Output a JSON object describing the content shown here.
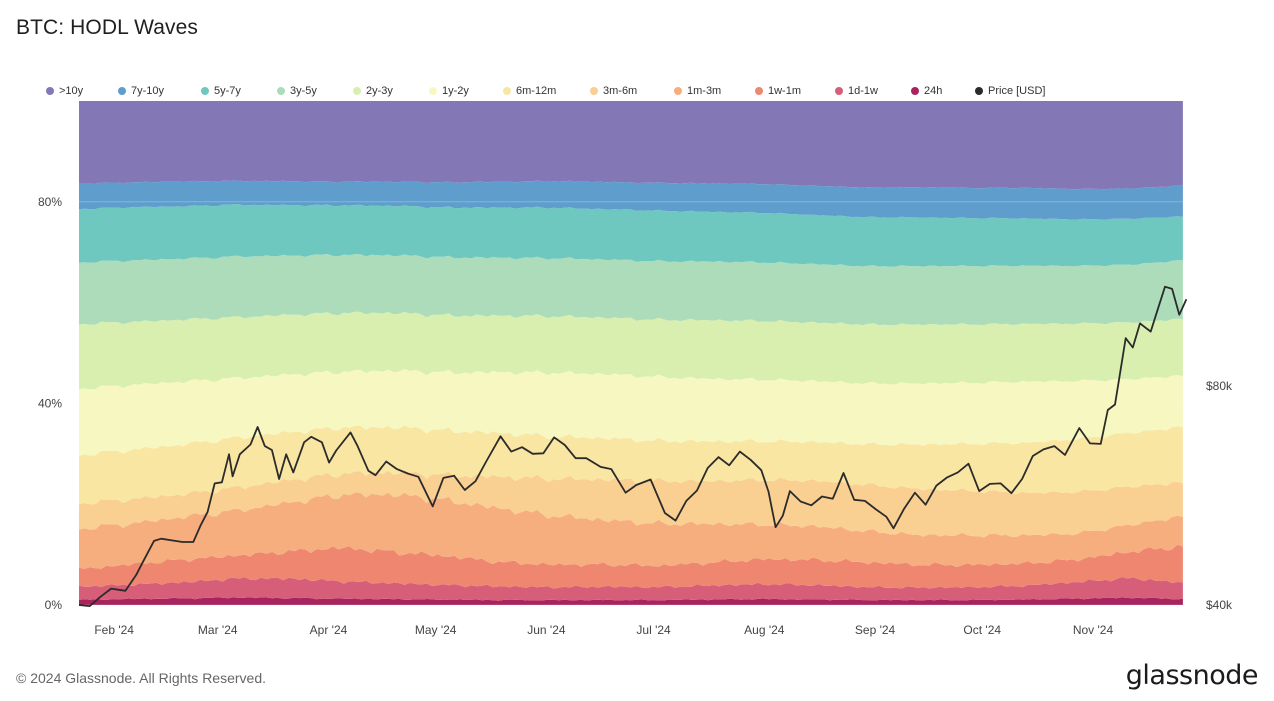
{
  "header": {
    "title": "BTC: HODL Waves"
  },
  "footer": {
    "copyright": "© 2024 Glassnode. All Rights Reserved.",
    "brand": "glassnode"
  },
  "colors": {
    ">10y": "#8378b5",
    "7y-10y": "#5f9dcc",
    "5y-7y": "#6fc8c0",
    "3y-5y": "#addcbb",
    "2y-3y": "#d8efb0",
    "1y-2y": "#f7f7c2",
    "6m-12m": "#fae6a3",
    "3m-6m": "#f9cf92",
    "1m-3m": "#f6ae7e",
    "1w-1m": "#ee8670",
    "1d-1w": "#d65e78",
    "24h": "#a8245e",
    "price": "#2b2b2b"
  },
  "chart_data": {
    "type": "area",
    "title": "BTC: HODL Waves",
    "stacking": "percent",
    "x": [
      "2024-01-23",
      "2024-02-01",
      "2024-02-15",
      "2024-03-01",
      "2024-03-15",
      "2024-04-01",
      "2024-04-15",
      "2024-05-01",
      "2024-05-15",
      "2024-06-01",
      "2024-06-15",
      "2024-07-01",
      "2024-07-15",
      "2024-08-01",
      "2024-08-15",
      "2024-09-01",
      "2024-09-15",
      "2024-10-01",
      "2024-10-15",
      "2024-11-01",
      "2024-11-15",
      "2024-11-27"
    ],
    "x_tick_labels": [
      "Feb '24",
      "Mar '24",
      "Apr '24",
      "May '24",
      "Jun '24",
      "Jul '24",
      "Aug '24",
      "Sep '24",
      "Oct '24",
      "Nov '24"
    ],
    "y_left": {
      "ticks": [
        0,
        40,
        80
      ],
      "tick_labels": [
        "0%",
        "40%",
        "80%"
      ],
      "range": [
        0,
        100
      ]
    },
    "y_right": {
      "ticks": [
        40000,
        80000
      ],
      "tick_labels": [
        "$40k",
        "$80k"
      ],
      "range": [
        40000,
        132000
      ]
    },
    "legend_position": "top",
    "series": [
      {
        "name": "24h",
        "values": [
          1.0,
          1.2,
          1.3,
          1.5,
          1.4,
          1.3,
          1.2,
          1.1,
          1.0,
          1.0,
          1.0,
          1.0,
          1.1,
          1.2,
          1.1,
          1.0,
          1.0,
          1.0,
          1.1,
          1.3,
          1.5,
          1.2
        ]
      },
      {
        "name": "1d-1w",
        "values": [
          2.6,
          2.8,
          3.2,
          3.8,
          4.0,
          3.6,
          3.3,
          3.0,
          2.8,
          2.6,
          2.7,
          2.6,
          2.8,
          3.0,
          2.9,
          2.6,
          2.5,
          2.6,
          2.8,
          3.4,
          4.0,
          3.2
        ]
      },
      {
        "name": "1w-1m",
        "values": [
          3.4,
          4.0,
          4.5,
          4.6,
          5.5,
          7.0,
          6.5,
          6.0,
          5.0,
          4.6,
          4.5,
          4.3,
          4.6,
          5.0,
          5.1,
          5.0,
          4.6,
          4.5,
          4.5,
          4.6,
          5.4,
          7.4
        ]
      },
      {
        "name": "1m-3m",
        "values": [
          8.0,
          8.0,
          8.5,
          9.0,
          10.0,
          11.0,
          12.0,
          11.5,
          11.0,
          10.0,
          9.0,
          8.5,
          7.8,
          7.0,
          6.8,
          6.3,
          6.0,
          6.0,
          5.7,
          5.3,
          5.5,
          6.0
        ]
      },
      {
        "name": "3m-6m",
        "values": [
          5.0,
          4.8,
          4.5,
          4.6,
          4.6,
          4.4,
          4.6,
          5.2,
          6.5,
          7.5,
          8.2,
          8.6,
          8.6,
          9.0,
          9.2,
          9.4,
          9.3,
          9.0,
          8.6,
          8.5,
          7.8,
          6.8
        ]
      },
      {
        "name": "6m-12m",
        "values": [
          9.5,
          9.7,
          9.9,
          10.0,
          9.8,
          9.6,
          9.4,
          9.2,
          9.0,
          8.6,
          8.4,
          8.1,
          8.0,
          7.8,
          7.8,
          8.2,
          9.0,
          9.5,
          10.2,
          10.8,
          11.0,
          11.2
        ]
      },
      {
        "name": "1y-2y",
        "values": [
          13.0,
          12.8,
          12.5,
          12.0,
          11.8,
          11.6,
          11.8,
          12.0,
          12.5,
          13.0,
          13.0,
          12.9,
          12.6,
          12.4,
          12.3,
          12.3,
          12.3,
          12.4,
          12.4,
          11.9,
          11.0,
          10.3
        ]
      },
      {
        "name": "2y-3y",
        "values": [
          12.7,
          12.4,
          12.3,
          12.2,
          12.2,
          12.2,
          12.0,
          11.8,
          11.6,
          11.5,
          11.4,
          11.5,
          11.8,
          11.8,
          11.8,
          11.9,
          11.9,
          11.8,
          11.7,
          11.7,
          11.6,
          11.4
        ]
      },
      {
        "name": "3y-5y",
        "values": [
          12.1,
          12.1,
          12.1,
          12.2,
          12.1,
          12.1,
          12.0,
          12.0,
          11.9,
          11.8,
          11.8,
          11.8,
          11.8,
          11.8,
          11.8,
          11.8,
          11.8,
          11.8,
          11.8,
          11.8,
          11.8,
          11.8
        ]
      },
      {
        "name": "5y-7y",
        "values": [
          10.5,
          10.5,
          10.4,
          10.4,
          10.3,
          10.3,
          10.3,
          10.3,
          10.3,
          10.3,
          10.2,
          10.2,
          10.0,
          10.0,
          9.9,
          9.9,
          9.8,
          9.7,
          9.6,
          9.5,
          9.4,
          8.8
        ]
      },
      {
        "name": "7y-10y",
        "values": [
          5.0,
          4.9,
          4.9,
          4.8,
          4.9,
          4.9,
          5.0,
          5.2,
          5.3,
          5.4,
          5.5,
          5.6,
          5.7,
          5.8,
          5.9,
          6.0,
          6.1,
          6.1,
          6.2,
          6.2,
          6.2,
          6.2
        ]
      },
      {
        "name": ">10y",
        "values": [
          16.2,
          16.0,
          16.0,
          16.0,
          16.4,
          16.8,
          16.8,
          16.8,
          16.6,
          16.3,
          16.4,
          16.5,
          16.6,
          16.7,
          17.1,
          17.5,
          17.4,
          17.6,
          17.6,
          18.0,
          17.9,
          17.0
        ]
      }
    ],
    "price": {
      "name": "Price [USD]",
      "x": [
        "2024-01-23",
        "2024-01-26",
        "2024-01-29",
        "2024-02-01",
        "2024-02-05",
        "2024-02-08",
        "2024-02-10",
        "2024-02-13",
        "2024-02-15",
        "2024-02-18",
        "2024-02-21",
        "2024-02-24",
        "2024-02-26",
        "2024-02-28",
        "2024-03-01",
        "2024-03-03",
        "2024-03-05",
        "2024-03-06",
        "2024-03-08",
        "2024-03-11",
        "2024-03-13",
        "2024-03-15",
        "2024-03-17",
        "2024-03-19",
        "2024-03-21",
        "2024-03-23",
        "2024-03-26",
        "2024-03-28",
        "2024-03-31",
        "2024-04-02",
        "2024-04-04",
        "2024-04-08",
        "2024-04-10",
        "2024-04-13",
        "2024-04-15",
        "2024-04-18",
        "2024-04-21",
        "2024-04-24",
        "2024-04-27",
        "2024-05-01",
        "2024-05-04",
        "2024-05-07",
        "2024-05-10",
        "2024-05-13",
        "2024-05-16",
        "2024-05-20",
        "2024-05-23",
        "2024-05-26",
        "2024-05-29",
        "2024-06-01",
        "2024-06-04",
        "2024-06-07",
        "2024-06-10",
        "2024-06-13",
        "2024-06-17",
        "2024-06-20",
        "2024-06-24",
        "2024-06-27",
        "2024-07-01",
        "2024-07-05",
        "2024-07-08",
        "2024-07-11",
        "2024-07-14",
        "2024-07-17",
        "2024-07-20",
        "2024-07-23",
        "2024-07-26",
        "2024-07-29",
        "2024-08-01",
        "2024-08-03",
        "2024-08-05",
        "2024-08-07",
        "2024-08-09",
        "2024-08-12",
        "2024-08-15",
        "2024-08-18",
        "2024-08-21",
        "2024-08-24",
        "2024-08-27",
        "2024-08-30",
        "2024-09-02",
        "2024-09-05",
        "2024-09-07",
        "2024-09-10",
        "2024-09-13",
        "2024-09-16",
        "2024-09-19",
        "2024-09-22",
        "2024-09-25",
        "2024-09-28",
        "2024-10-01",
        "2024-10-04",
        "2024-10-07",
        "2024-10-10",
        "2024-10-13",
        "2024-10-16",
        "2024-10-19",
        "2024-10-22",
        "2024-10-25",
        "2024-10-29",
        "2024-11-01",
        "2024-11-04",
        "2024-11-06",
        "2024-11-08",
        "2024-11-11",
        "2024-11-13",
        "2024-11-15",
        "2024-11-18",
        "2024-11-20",
        "2024-11-22",
        "2024-11-24",
        "2024-11-26",
        "2024-11-28"
      ],
      "values": [
        40000,
        39800,
        41500,
        43000,
        42600,
        45500,
        48000,
        51700,
        52100,
        51800,
        51500,
        51500,
        54500,
        57000,
        62200,
        62400,
        67500,
        63500,
        67500,
        69300,
        72500,
        69000,
        68300,
        63000,
        67500,
        64200,
        69700,
        70700,
        69700,
        66000,
        68200,
        71500,
        69000,
        64500,
        63700,
        66200,
        64800,
        64000,
        63400,
        58000,
        63200,
        63600,
        61000,
        62600,
        66200,
        70800,
        68000,
        68800,
        67600,
        67700,
        70600,
        69200,
        66800,
        66800,
        65200,
        64800,
        60500,
        61900,
        62900,
        56800,
        55400,
        59000,
        60900,
        65000,
        67000,
        65500,
        68000,
        66500,
        64600,
        60700,
        54200,
        56300,
        60800,
        58900,
        58200,
        59800,
        59400,
        64100,
        59200,
        59000,
        57500,
        56100,
        54000,
        57600,
        60500,
        58300,
        61800,
        63300,
        64200,
        65800,
        60800,
        62100,
        62200,
        60400,
        63000,
        67200,
        68400,
        69000,
        67400,
        72300,
        69500,
        69400,
        75600,
        76600,
        88700,
        87000,
        91400,
        89900,
        94000,
        98100,
        97700,
        93000,
        95800
      ]
    }
  }
}
